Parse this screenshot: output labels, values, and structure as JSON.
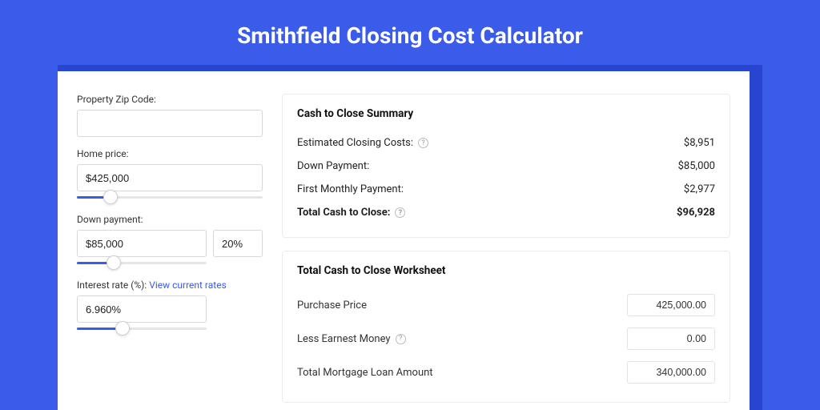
{
  "title": "Smithfield Closing Cost Calculator",
  "colors": {
    "page_bg": "#3a5ce8",
    "shadow_bg": "#2845d1",
    "panel_bg": "#ffffff",
    "accent": "#3a5ce8",
    "border": "#d8d8d8",
    "text": "#222222"
  },
  "form": {
    "zip": {
      "label": "Property Zip Code:",
      "value": ""
    },
    "home_price": {
      "label": "Home price:",
      "value": "$425,000",
      "slider_pct": 18
    },
    "down_payment": {
      "label": "Down payment:",
      "value": "$85,000",
      "pct": "20%",
      "slider_pct": 20
    },
    "interest_rate": {
      "label": "Interest rate (%): ",
      "link": "View current rates",
      "value": "6.960%",
      "slider_pct": 35
    }
  },
  "summary": {
    "title": "Cash to Close Summary",
    "rows": [
      {
        "label": "Estimated Closing Costs:",
        "help": true,
        "value": "$8,951",
        "bold": false
      },
      {
        "label": "Down Payment:",
        "help": false,
        "value": "$85,000",
        "bold": false
      },
      {
        "label": "First Monthly Payment:",
        "help": false,
        "value": "$2,977",
        "bold": false
      },
      {
        "label": "Total Cash to Close:",
        "help": true,
        "value": "$96,928",
        "bold": true
      }
    ]
  },
  "worksheet": {
    "title": "Total Cash to Close Worksheet",
    "rows": [
      {
        "label": "Purchase Price",
        "help": false,
        "value": "425,000.00"
      },
      {
        "label": "Less Earnest Money",
        "help": true,
        "value": "0.00"
      },
      {
        "label": "Total Mortgage Loan Amount",
        "help": false,
        "value": "340,000.00"
      }
    ]
  }
}
